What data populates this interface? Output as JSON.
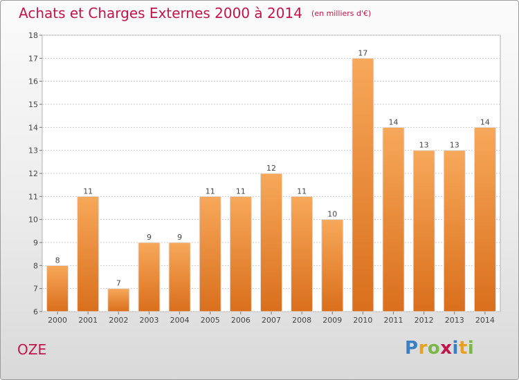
{
  "title": "Achats et Charges Externes 2000 à 2014",
  "unit_note": "(en milliers d'€)",
  "commune": "OZE",
  "logo": {
    "text": "Proxiti",
    "letters": [
      {
        "c": "P",
        "color": "#3a7fc4"
      },
      {
        "c": "r",
        "color": "#e8a020"
      },
      {
        "c": "o",
        "color": "#7ab648"
      },
      {
        "c": "x",
        "color": "#c0144a"
      },
      {
        "c": "i",
        "color": "#3a7fc4"
      },
      {
        "c": "t",
        "color": "#e8a020"
      },
      {
        "c": "i",
        "color": "#7ab648"
      }
    ]
  },
  "colors": {
    "bar_light": "#f7a85a",
    "bar_dark": "#d96f1c",
    "title": "#c0144a",
    "grid": "#c8c8c8"
  },
  "chart_data": {
    "type": "bar",
    "title": "Achats et Charges Externes 2000 à 2014",
    "subtitle": "(en milliers d'€)",
    "categories": [
      "2000",
      "2001",
      "2002",
      "2003",
      "2004",
      "2005",
      "2006",
      "2007",
      "2008",
      "2009",
      "2010",
      "2011",
      "2012",
      "2013",
      "2014"
    ],
    "values": [
      8,
      11,
      7,
      9,
      9,
      11,
      11,
      12,
      11,
      10,
      17,
      14,
      13,
      13,
      14
    ],
    "ylim": [
      6,
      18
    ],
    "yticks": [
      6,
      7,
      8,
      9,
      10,
      11,
      12,
      13,
      14,
      15,
      16,
      17,
      18
    ],
    "grid": true,
    "data_labels": true
  }
}
